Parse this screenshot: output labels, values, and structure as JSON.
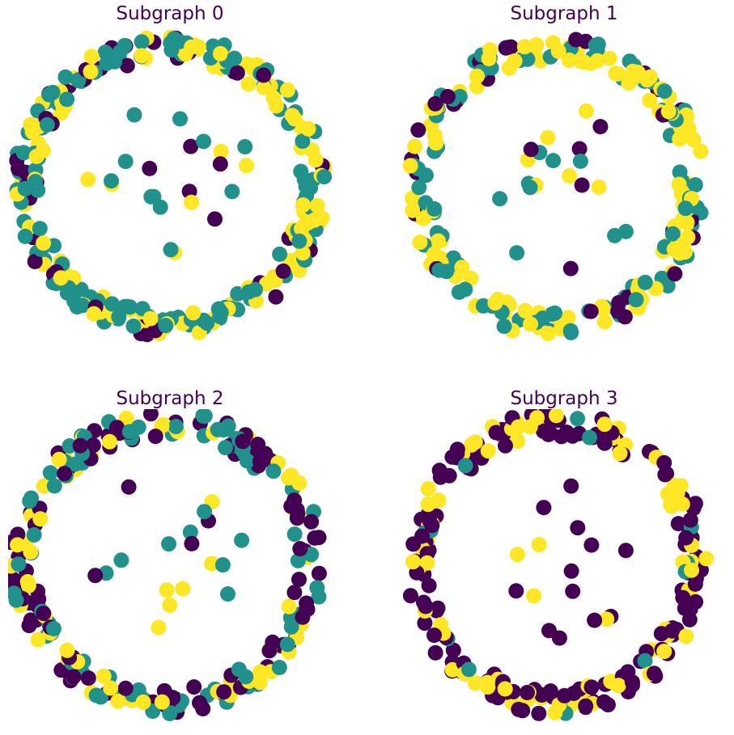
{
  "figure": {
    "colors": {
      "purple": "#440154",
      "teal": "#21918c",
      "yellow": "#fde725"
    }
  },
  "chart_data": [
    {
      "type": "scatter",
      "title": "Subgraph 0",
      "node_counts": {
        "purple": 48,
        "teal": 120,
        "yellow": 108
      },
      "outer_ring_nodes": 300,
      "inner_nodes": 22,
      "grid": false,
      "axes_visible": false
    },
    {
      "type": "scatter",
      "title": "Subgraph 1",
      "node_counts": {
        "purple": 36,
        "teal": 96,
        "yellow": 132
      },
      "outer_ring_nodes": 240,
      "inner_nodes": 20,
      "grid": false,
      "axes_visible": false
    },
    {
      "type": "scatter",
      "title": "Subgraph 2",
      "node_counts": {
        "purple": 108,
        "teal": 108,
        "yellow": 60
      },
      "outer_ring_nodes": 260,
      "inner_nodes": 18,
      "grid": false,
      "axes_visible": false
    },
    {
      "type": "scatter",
      "title": "Subgraph 3",
      "node_counts": {
        "purple": 156,
        "teal": 18,
        "yellow": 72
      },
      "outer_ring_nodes": 230,
      "inner_nodes": 16,
      "grid": false,
      "axes_visible": false
    }
  ]
}
